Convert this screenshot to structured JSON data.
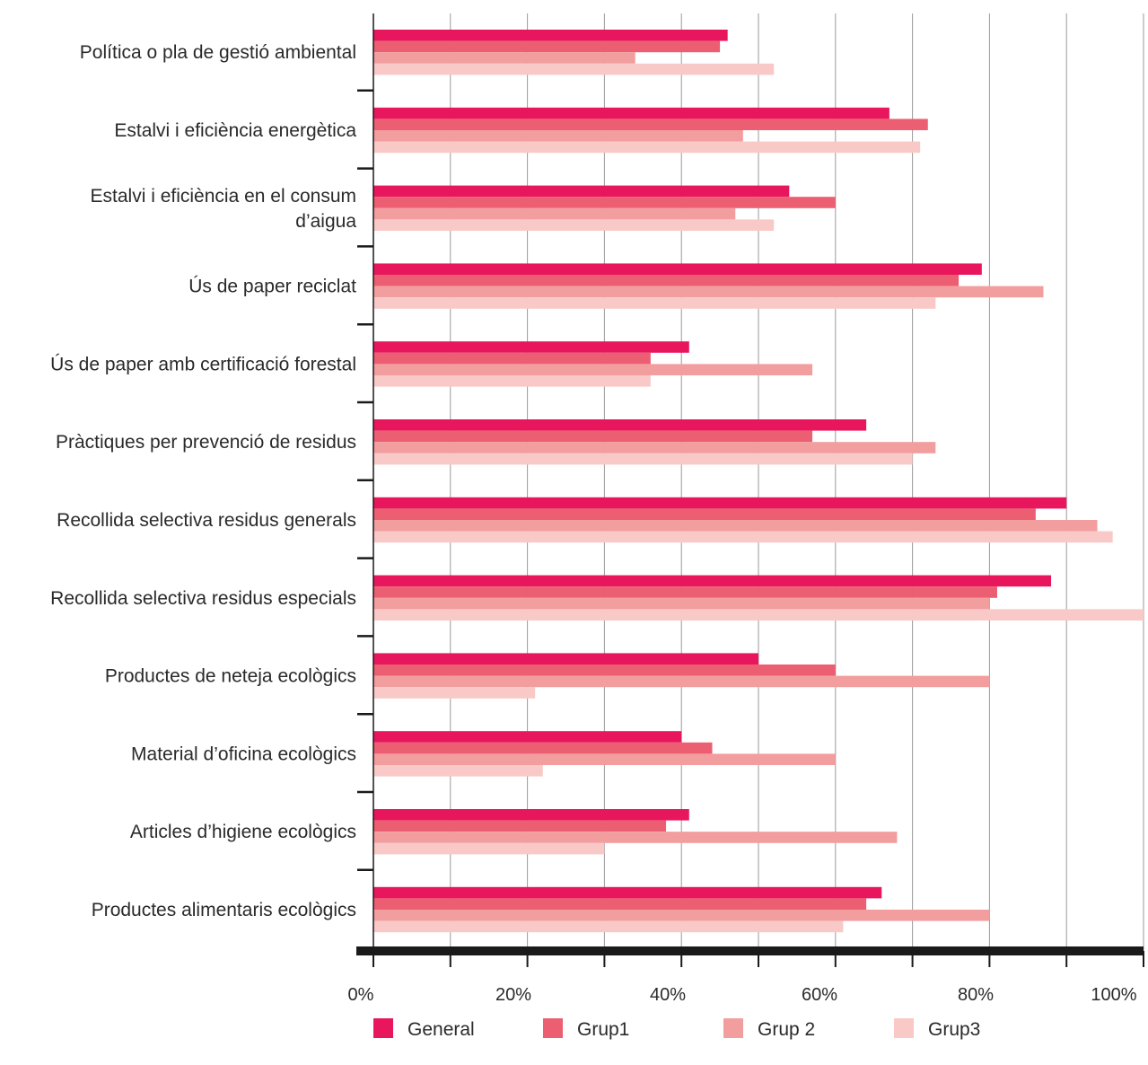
{
  "chart_data": {
    "type": "bar",
    "orientation": "horizontal",
    "categories": [
      [
        "Política o pla de gestió ambiental"
      ],
      [
        "Estalvi i eficiència energètica"
      ],
      [
        "Estalvi i eficiència en el consum",
        "d’aigua"
      ],
      [
        "Ús de paper reciclat"
      ],
      [
        "Ús de paper amb certificació forestal"
      ],
      [
        "Pràctiques per prevenció de residus"
      ],
      [
        "Recollida selectiva residus generals"
      ],
      [
        "Recollida selectiva residus especials"
      ],
      [
        "Productes de neteja ecològics"
      ],
      [
        "Material d’oficina ecològics"
      ],
      [
        "Articles d’higiene ecològics"
      ],
      [
        "Productes alimentaris ecològics"
      ]
    ],
    "series": [
      {
        "name": "General",
        "color": "#e8175d",
        "values": [
          46,
          67,
          54,
          79,
          41,
          64,
          90,
          88,
          50,
          40,
          41,
          66
        ]
      },
      {
        "name": "Grup1",
        "color": "#ec5f72",
        "values": [
          45,
          72,
          60,
          76,
          36,
          57,
          86,
          81,
          60,
          44,
          38,
          64
        ]
      },
      {
        "name": "Grup 2",
        "color": "#f29d9e",
        "values": [
          34,
          48,
          47,
          87,
          57,
          73,
          94,
          80,
          80,
          60,
          68,
          80
        ]
      },
      {
        "name": "Grup3",
        "color": "#f9c9c7",
        "values": [
          52,
          71,
          52,
          73,
          36,
          70,
          96,
          100,
          21,
          22,
          30,
          61
        ]
      }
    ],
    "xlim": [
      0,
      100
    ],
    "xticks": [
      "0%",
      "20%",
      "40%",
      "60%",
      "80%",
      "100%"
    ],
    "grid": true,
    "legend_position": "bottom"
  }
}
